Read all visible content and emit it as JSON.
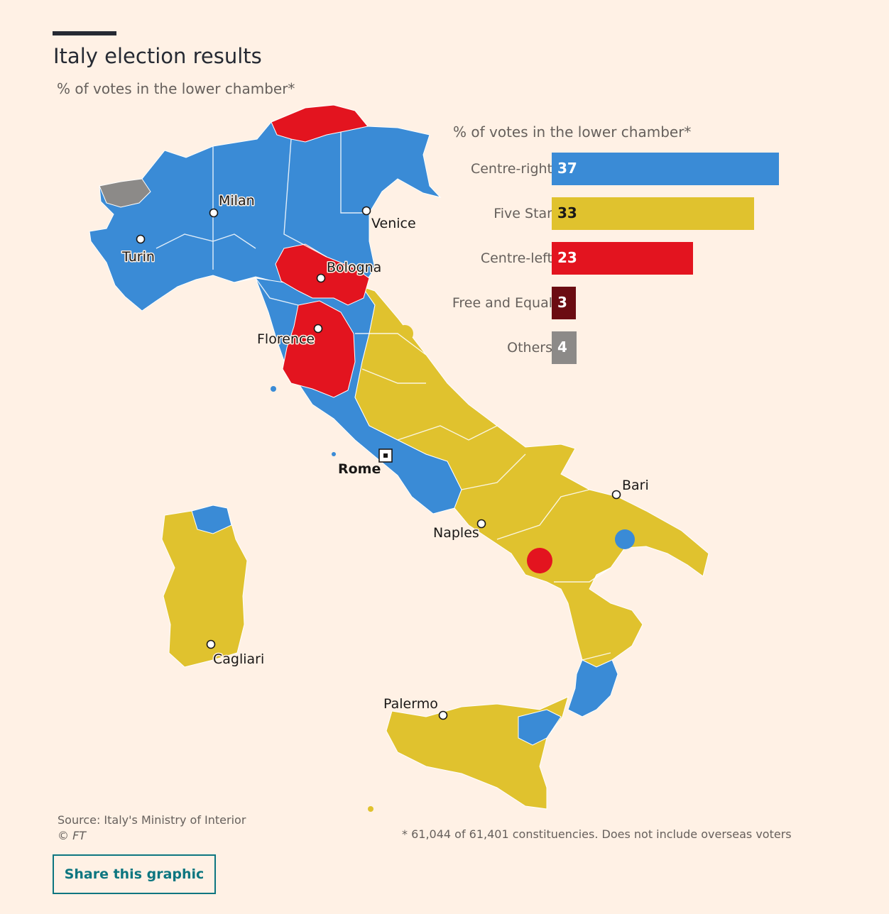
{
  "header": {
    "title": "Italy election results",
    "subtitle": "% of votes in the lower chamber*"
  },
  "map": {
    "colors": {
      "centre_right": "#3a8bd6",
      "five_star": "#e0c22e",
      "centre_left": "#e3141f",
      "others": "#8c8a88",
      "border": "#ffffff"
    },
    "cities": [
      {
        "name": "Milan",
        "capital": false
      },
      {
        "name": "Venice",
        "capital": false
      },
      {
        "name": "Turin",
        "capital": false
      },
      {
        "name": "Bologna",
        "capital": false
      },
      {
        "name": "Florence",
        "capital": false
      },
      {
        "name": "Rome",
        "capital": true
      },
      {
        "name": "Bari",
        "capital": false
      },
      {
        "name": "Naples",
        "capital": false
      },
      {
        "name": "Cagliari",
        "capital": false
      },
      {
        "name": "Palermo",
        "capital": false
      }
    ]
  },
  "chart_data": {
    "type": "bar",
    "title": "% of votes in the lower chamber*",
    "categories": [
      "Centre-right",
      "Five Star",
      "Centre-left",
      "Free and Equal",
      "Others"
    ],
    "values": [
      37,
      33,
      23,
      3,
      4
    ],
    "colors": [
      "#3a8bd6",
      "#e0c22e",
      "#e3141f",
      "#6b0c12",
      "#8c8a88"
    ],
    "value_text_colors": [
      "#ffffff",
      "#1a1817",
      "#ffffff",
      "#ffffff",
      "#ffffff"
    ],
    "xlim": [
      0,
      37
    ]
  },
  "footer": {
    "source": "Source: Italy's Ministry of Interior",
    "copyright": "© FT",
    "footnote": "* 61,044 of 61,401 constituencies. Does not include overseas voters",
    "share_label": "Share this graphic"
  }
}
